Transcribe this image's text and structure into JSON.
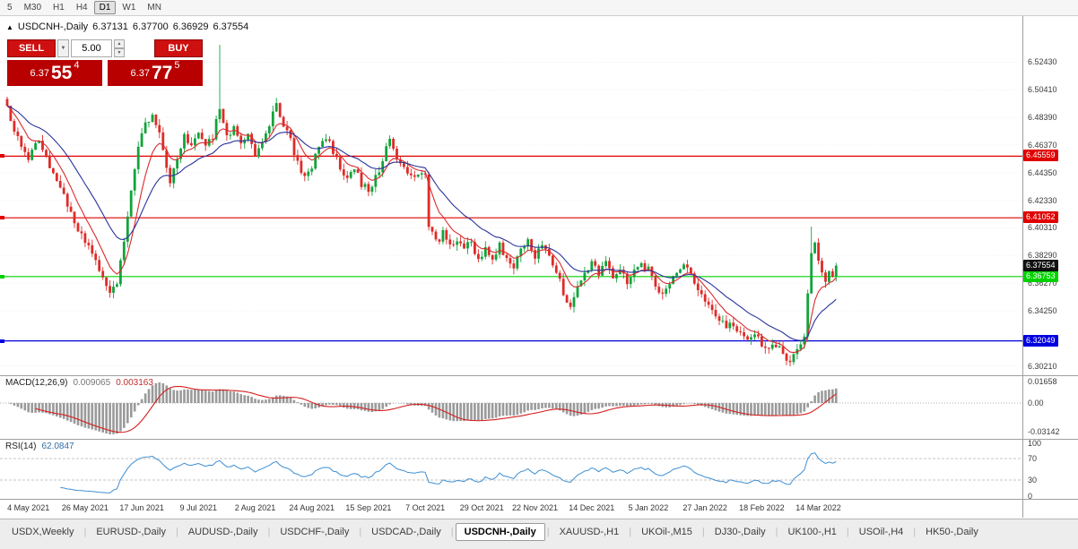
{
  "toolbar": {
    "timeframes": [
      "5",
      "M30",
      "H1",
      "H4",
      "D1",
      "W1",
      "MN"
    ],
    "active": "D1"
  },
  "chart_header": {
    "marker": "▲",
    "symbol": "USDCNH-,Daily",
    "open": "6.37131",
    "high": "6.37700",
    "low": "6.36929",
    "close": "6.37554"
  },
  "trade_panel": {
    "sell_label": "SELL",
    "buy_label": "BUY",
    "volume": "5.00",
    "dropdown_icon": "▼",
    "spin_up_icon": "▲",
    "spin_down_icon": "▼",
    "bid": {
      "prefix": "6.37",
      "big": "55",
      "sup": "4"
    },
    "ask": {
      "prefix": "6.37",
      "big": "77",
      "sup": "5"
    }
  },
  "chart_data": {
    "type": "candlestick",
    "symbol": "USDCNH-",
    "timeframe": "Daily",
    "bars": 235,
    "ohlc_current": {
      "open": 6.37131,
      "high": 6.377,
      "low": 6.36929,
      "close": 6.37554
    },
    "current_price": 6.37554,
    "price_anchors": [
      [
        0,
        6.492
      ],
      [
        3,
        6.468
      ],
      [
        6,
        6.455
      ],
      [
        9,
        6.468
      ],
      [
        12,
        6.448
      ],
      [
        14,
        6.438
      ],
      [
        16,
        6.43
      ],
      [
        18,
        6.412
      ],
      [
        21,
        6.398
      ],
      [
        24,
        6.383
      ],
      [
        27,
        6.368
      ],
      [
        29,
        6.358
      ],
      [
        31,
        6.364
      ],
      [
        33,
        6.395
      ],
      [
        35,
        6.43
      ],
      [
        37,
        6.462
      ],
      [
        39,
        6.478
      ],
      [
        41,
        6.488
      ],
      [
        43,
        6.47
      ],
      [
        46,
        6.438
      ],
      [
        48,
        6.452
      ],
      [
        50,
        6.47
      ],
      [
        52,
        6.462
      ],
      [
        54,
        6.472
      ],
      [
        56,
        6.462
      ],
      [
        58,
        6.47
      ],
      [
        60,
        6.49
      ],
      [
        62,
        6.468
      ],
      [
        64,
        6.478
      ],
      [
        66,
        6.462
      ],
      [
        68,
        6.47
      ],
      [
        70,
        6.458
      ],
      [
        72,
        6.468
      ],
      [
        74,
        6.48
      ],
      [
        76,
        6.492
      ],
      [
        78,
        6.478
      ],
      [
        80,
        6.466
      ],
      [
        82,
        6.452
      ],
      [
        84,
        6.44
      ],
      [
        86,
        6.448
      ],
      [
        88,
        6.462
      ],
      [
        90,
        6.47
      ],
      [
        92,
        6.458
      ],
      [
        94,
        6.448
      ],
      [
        96,
        6.44
      ],
      [
        98,
        6.448
      ],
      [
        100,
        6.436
      ],
      [
        102,
        6.43
      ],
      [
        104,
        6.44
      ],
      [
        106,
        6.452
      ],
      [
        108,
        6.468
      ],
      [
        110,
        6.455
      ],
      [
        112,
        6.448
      ],
      [
        114,
        6.44
      ],
      [
        116,
        6.445
      ],
      [
        118,
        6.442
      ],
      [
        119,
        6.405
      ],
      [
        121,
        6.392
      ],
      [
        123,
        6.4
      ],
      [
        125,
        6.39
      ],
      [
        127,
        6.396
      ],
      [
        129,
        6.388
      ],
      [
        131,
        6.392
      ],
      [
        133,
        6.38
      ],
      [
        135,
        6.388
      ],
      [
        137,
        6.38
      ],
      [
        139,
        6.39
      ],
      [
        141,
        6.382
      ],
      [
        143,
        6.376
      ],
      [
        145,
        6.386
      ],
      [
        147,
        6.392
      ],
      [
        149,
        6.383
      ],
      [
        151,
        6.39
      ],
      [
        153,
        6.382
      ],
      [
        155,
        6.372
      ],
      [
        157,
        6.356
      ],
      [
        159,
        6.346
      ],
      [
        161,
        6.36
      ],
      [
        163,
        6.372
      ],
      [
        165,
        6.377
      ],
      [
        167,
        6.37
      ],
      [
        169,
        6.376
      ],
      [
        171,
        6.368
      ],
      [
        173,
        6.372
      ],
      [
        175,
        6.364
      ],
      [
        177,
        6.37
      ],
      [
        179,
        6.376
      ],
      [
        181,
        6.372
      ],
      [
        183,
        6.362
      ],
      [
        185,
        6.354
      ],
      [
        187,
        6.362
      ],
      [
        189,
        6.37
      ],
      [
        191,
        6.376
      ],
      [
        193,
        6.368
      ],
      [
        195,
        6.36
      ],
      [
        197,
        6.352
      ],
      [
        199,
        6.344
      ],
      [
        201,
        6.336
      ],
      [
        203,
        6.33
      ],
      [
        205,
        6.334
      ],
      [
        207,
        6.326
      ],
      [
        209,
        6.32
      ],
      [
        211,
        6.326
      ],
      [
        213,
        6.318
      ],
      [
        215,
        6.312
      ],
      [
        217,
        6.318
      ],
      [
        219,
        6.31
      ],
      [
        221,
        6.305
      ],
      [
        223,
        6.312
      ],
      [
        225,
        6.322
      ],
      [
        226,
        6.355
      ],
      [
        227,
        6.385
      ],
      [
        228,
        6.392
      ],
      [
        229,
        6.378
      ],
      [
        230,
        6.368
      ],
      [
        231,
        6.362
      ],
      [
        232,
        6.372
      ],
      [
        233,
        6.37
      ],
      [
        234,
        6.37554
      ]
    ],
    "spikes": [
      [
        60,
        6.537
      ],
      [
        227,
        6.404
      ]
    ],
    "hlines": [
      {
        "price": 6.45559,
        "color": "#e00000"
      },
      {
        "price": 6.41052,
        "color": "#e00000"
      },
      {
        "price": 6.36753,
        "color": "#00d200"
      },
      {
        "price": 6.32049,
        "color": "#0000e0"
      }
    ],
    "y_axis": [
      6.5243,
      6.5041,
      6.4839,
      6.4637,
      6.4435,
      6.4233,
      6.4031,
      6.3829,
      6.3627,
      6.3425,
      6.3223,
      6.3021
    ],
    "x_axis": [
      {
        "i": 6,
        "label": "4 May 2021"
      },
      {
        "i": 22,
        "label": "26 May 2021"
      },
      {
        "i": 38,
        "label": "17 Jun 2021"
      },
      {
        "i": 54,
        "label": "9 Jul 2021"
      },
      {
        "i": 70,
        "label": "2 Aug 2021"
      },
      {
        "i": 86,
        "label": "24 Aug 2021"
      },
      {
        "i": 102,
        "label": "15 Sep 2021"
      },
      {
        "i": 118,
        "label": "7 Oct 2021"
      },
      {
        "i": 134,
        "label": "29 Oct 2021"
      },
      {
        "i": 149,
        "label": "22 Nov 2021"
      },
      {
        "i": 165,
        "label": "14 Dec 2021"
      },
      {
        "i": 181,
        "label": "5 Jan 2022"
      },
      {
        "i": 197,
        "label": "27 Jan 2022"
      },
      {
        "i": 213,
        "label": "18 Feb 2022"
      },
      {
        "i": 229,
        "label": "14 Mar 2022"
      }
    ],
    "moving_averages": [
      {
        "period": 8,
        "color": "#d92b2b"
      },
      {
        "period": 21,
        "color": "#29339b"
      }
    ],
    "macd": {
      "title": "MACD(12,26,9)",
      "value_main": "0.009065",
      "value_signal": "0.003163",
      "axis_labels": [
        "0.01658",
        "0.00",
        "-0.03142"
      ],
      "histogram_color": "#9a9a9a",
      "signal_color": "#d42020"
    },
    "rsi": {
      "title": "RSI(14)",
      "value": "62.0847",
      "axis_labels": [
        100,
        70,
        30,
        0
      ],
      "dashed_levels": [
        70,
        30
      ],
      "line_color": "#3d8fd4"
    },
    "colors": {
      "up": "#12a33b",
      "down": "#dd2c28",
      "current_price_box": "#111111"
    }
  },
  "tabs": [
    {
      "label": "USDX,Weekly",
      "active": false
    },
    {
      "label": "EURUSD-,Daily",
      "active": false
    },
    {
      "label": "AUDUSD-,Daily",
      "active": false
    },
    {
      "label": "USDCHF-,Daily",
      "active": false
    },
    {
      "label": "USDCAD-,Daily",
      "active": false
    },
    {
      "label": "USDCNH-,Daily",
      "active": true
    },
    {
      "label": "XAUUSD-,H1",
      "active": false
    },
    {
      "label": "UKOil-,M15",
      "active": false
    },
    {
      "label": "DJ30-,Daily",
      "active": false
    },
    {
      "label": "UK100-,H1",
      "active": false
    },
    {
      "label": "USOil-,H4",
      "active": false
    },
    {
      "label": "HK50-,Daily",
      "active": false
    }
  ]
}
